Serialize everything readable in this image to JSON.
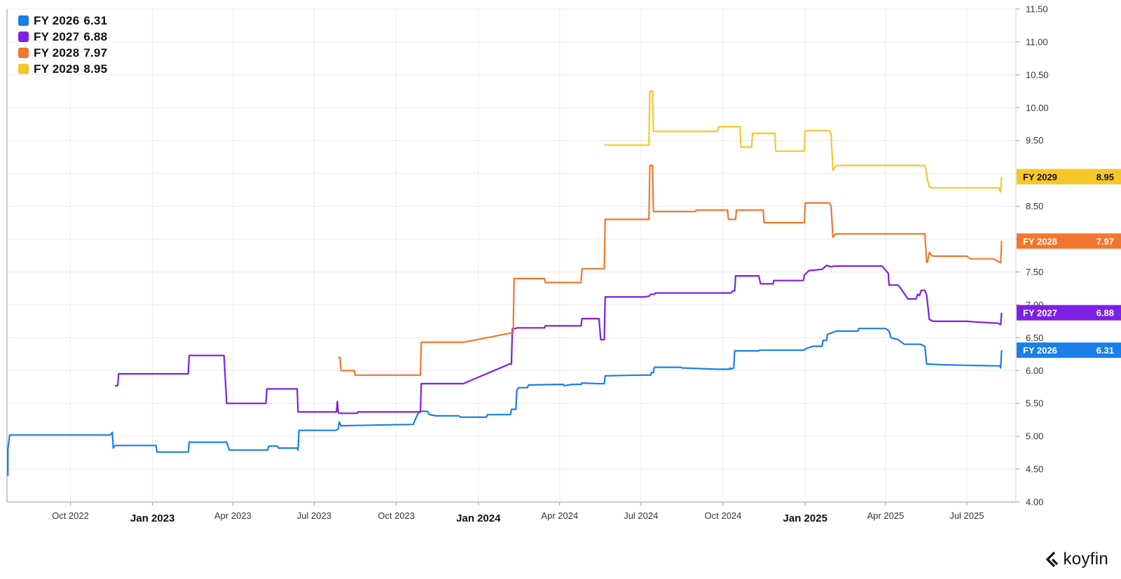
{
  "chart_data": {
    "type": "line",
    "y_axis": {
      "position": "right",
      "range": [
        4.0,
        11.5
      ],
      "ticks": [
        "4.00",
        "4.50",
        "5.00",
        "5.50",
        "6.00",
        "6.50",
        "7.00",
        "7.50",
        "8.00",
        "8.50",
        "9.00",
        "9.50",
        "10.00",
        "10.50",
        "11.00",
        "11.50"
      ]
    },
    "x_axis": {
      "range": [
        "2022-07-22",
        "2025-08-25"
      ],
      "ticks": [
        {
          "date": "2022-10-01",
          "label": "Oct 2022",
          "major": false
        },
        {
          "date": "2023-01-01",
          "label": "Jan 2023",
          "major": true
        },
        {
          "date": "2023-04-01",
          "label": "Apr 2023",
          "major": false
        },
        {
          "date": "2023-07-01",
          "label": "Jul 2023",
          "major": false
        },
        {
          "date": "2023-10-01",
          "label": "Oct 2023",
          "major": false
        },
        {
          "date": "2024-01-01",
          "label": "Jan 2024",
          "major": true
        },
        {
          "date": "2024-04-01",
          "label": "Apr 2024",
          "major": false
        },
        {
          "date": "2024-07-01",
          "label": "Jul 2024",
          "major": false
        },
        {
          "date": "2024-10-01",
          "label": "Oct 2024",
          "major": false
        },
        {
          "date": "2025-01-01",
          "label": "Jan 2025",
          "major": true
        },
        {
          "date": "2025-04-01",
          "label": "Apr 2025",
          "major": false
        },
        {
          "date": "2025-07-01",
          "label": "Jul 2025",
          "major": false
        }
      ]
    },
    "grid": true,
    "legend_placement": "top-left",
    "series": [
      {
        "name": "FY 2026",
        "last_value": "6.31",
        "color": "#1a7fe8",
        "points": [
          [
            "2022-07-23",
            4.4
          ],
          [
            "2022-07-23",
            4.8
          ],
          [
            "2022-07-25",
            5.02
          ],
          [
            "2022-11-15",
            5.02
          ],
          [
            "2022-11-17",
            5.06
          ],
          [
            "2022-11-18",
            4.82
          ],
          [
            "2022-11-20",
            4.86
          ],
          [
            "2023-01-05",
            4.86
          ],
          [
            "2023-01-06",
            4.76
          ],
          [
            "2023-02-10",
            4.76
          ],
          [
            "2023-02-11",
            4.91
          ],
          [
            "2023-03-25",
            4.91
          ],
          [
            "2023-03-28",
            4.79
          ],
          [
            "2023-05-10",
            4.79
          ],
          [
            "2023-05-11",
            4.85
          ],
          [
            "2023-05-21",
            4.85
          ],
          [
            "2023-05-22",
            4.82
          ],
          [
            "2023-06-12",
            4.82
          ],
          [
            "2023-06-13",
            4.79
          ],
          [
            "2023-06-14",
            5.09
          ],
          [
            "2023-07-25",
            5.09
          ],
          [
            "2023-07-28",
            5.11
          ],
          [
            "2023-07-29",
            5.22
          ],
          [
            "2023-07-31",
            5.16
          ],
          [
            "2023-10-20",
            5.18
          ],
          [
            "2023-10-25",
            5.34
          ],
          [
            "2023-10-28",
            5.38
          ],
          [
            "2023-11-05",
            5.38
          ],
          [
            "2023-11-07",
            5.33
          ],
          [
            "2023-11-15",
            5.31
          ],
          [
            "2023-12-10",
            5.31
          ],
          [
            "2023-12-12",
            5.29
          ],
          [
            "2024-01-10",
            5.29
          ],
          [
            "2024-01-11",
            5.33
          ],
          [
            "2024-02-06",
            5.33
          ],
          [
            "2024-02-07",
            5.41
          ],
          [
            "2024-02-12",
            5.41
          ],
          [
            "2024-02-13",
            5.7
          ],
          [
            "2024-02-15",
            5.74
          ],
          [
            "2024-02-25",
            5.74
          ],
          [
            "2024-02-26",
            5.78
          ],
          [
            "2024-04-05",
            5.79
          ],
          [
            "2024-04-06",
            5.77
          ],
          [
            "2024-04-15",
            5.79
          ],
          [
            "2024-04-25",
            5.79
          ],
          [
            "2024-04-26",
            5.81
          ],
          [
            "2024-05-15",
            5.8
          ],
          [
            "2024-05-21",
            5.8
          ],
          [
            "2024-05-22",
            5.92
          ],
          [
            "2024-06-30",
            5.93
          ],
          [
            "2024-07-12",
            5.93
          ],
          [
            "2024-07-13",
            5.97
          ],
          [
            "2024-07-15",
            5.97
          ],
          [
            "2024-07-16",
            6.05
          ],
          [
            "2024-08-15",
            6.05
          ],
          [
            "2024-08-16",
            6.04
          ],
          [
            "2024-09-25",
            6.02
          ],
          [
            "2024-10-08",
            6.02
          ],
          [
            "2024-10-09",
            6.04
          ],
          [
            "2024-10-10",
            6.02
          ],
          [
            "2024-10-13",
            6.04
          ],
          [
            "2024-10-14",
            6.3
          ],
          [
            "2024-11-10",
            6.3
          ],
          [
            "2024-11-11",
            6.31
          ],
          [
            "2024-12-31",
            6.31
          ],
          [
            "2025-01-01",
            6.33
          ],
          [
            "2025-01-10",
            6.37
          ],
          [
            "2025-01-20",
            6.37
          ],
          [
            "2025-01-21",
            6.46
          ],
          [
            "2025-01-25",
            6.46
          ],
          [
            "2025-01-26",
            6.55
          ],
          [
            "2025-02-05",
            6.6
          ],
          [
            "2025-03-01",
            6.6
          ],
          [
            "2025-03-02",
            6.64
          ],
          [
            "2025-04-01",
            6.64
          ],
          [
            "2025-04-05",
            6.6
          ],
          [
            "2025-04-07",
            6.5
          ],
          [
            "2025-04-15",
            6.47
          ],
          [
            "2025-04-22",
            6.4
          ],
          [
            "2025-05-10",
            6.4
          ],
          [
            "2025-05-15",
            6.37
          ],
          [
            "2025-05-17",
            6.1
          ],
          [
            "2025-06-01",
            6.09
          ],
          [
            "2025-07-01",
            6.08
          ],
          [
            "2025-08-07",
            6.07
          ],
          [
            "2025-08-08",
            6.04
          ],
          [
            "2025-08-09",
            6.31
          ]
        ]
      },
      {
        "name": "FY 2027",
        "last_value": "6.88",
        "color": "#7e1fe6",
        "points": [
          [
            "2022-11-20",
            5.77
          ],
          [
            "2022-11-23",
            5.77
          ],
          [
            "2022-11-24",
            5.95
          ],
          [
            "2023-02-10",
            5.95
          ],
          [
            "2023-02-11",
            6.23
          ],
          [
            "2023-03-22",
            6.23
          ],
          [
            "2023-03-25",
            5.5
          ],
          [
            "2023-05-08",
            5.5
          ],
          [
            "2023-05-09",
            5.72
          ],
          [
            "2023-06-12",
            5.72
          ],
          [
            "2023-06-13",
            5.37
          ],
          [
            "2023-07-26",
            5.37
          ],
          [
            "2023-07-27",
            5.53
          ],
          [
            "2023-07-28",
            5.36
          ],
          [
            "2023-07-29",
            5.35
          ],
          [
            "2023-08-18",
            5.35
          ],
          [
            "2023-08-19",
            5.37
          ],
          [
            "2023-10-28",
            5.37
          ],
          [
            "2023-10-29",
            5.8
          ],
          [
            "2023-12-15",
            5.8
          ],
          [
            "2024-02-05",
            6.1
          ],
          [
            "2024-02-07",
            6.1
          ],
          [
            "2024-02-08",
            6.64
          ],
          [
            "2024-02-12",
            6.64
          ],
          [
            "2024-02-13",
            6.65
          ],
          [
            "2024-03-15",
            6.65
          ],
          [
            "2024-03-16",
            6.68
          ],
          [
            "2024-04-25",
            6.68
          ],
          [
            "2024-04-26",
            6.79
          ],
          [
            "2024-05-15",
            6.79
          ],
          [
            "2024-05-17",
            6.47
          ],
          [
            "2024-05-21",
            6.47
          ],
          [
            "2024-05-22",
            7.12
          ],
          [
            "2024-07-05",
            7.12
          ],
          [
            "2024-07-10",
            7.13
          ],
          [
            "2024-07-12",
            7.16
          ],
          [
            "2024-07-16",
            7.16
          ],
          [
            "2024-07-17",
            7.18
          ],
          [
            "2024-10-10",
            7.18
          ],
          [
            "2024-10-12",
            7.21
          ],
          [
            "2024-10-14",
            7.21
          ],
          [
            "2024-10-15",
            7.44
          ],
          [
            "2024-11-10",
            7.44
          ],
          [
            "2024-11-12",
            7.32
          ],
          [
            "2024-11-26",
            7.32
          ],
          [
            "2024-11-27",
            7.37
          ],
          [
            "2024-12-30",
            7.37
          ],
          [
            "2024-12-31",
            7.45
          ],
          [
            "2025-01-05",
            7.52
          ],
          [
            "2025-01-20",
            7.54
          ],
          [
            "2025-01-25",
            7.6
          ],
          [
            "2025-01-30",
            7.58
          ],
          [
            "2025-02-03",
            7.59
          ],
          [
            "2025-03-28",
            7.59
          ],
          [
            "2025-04-01",
            7.53
          ],
          [
            "2025-04-04",
            7.48
          ],
          [
            "2025-04-05",
            7.3
          ],
          [
            "2025-04-15",
            7.3
          ],
          [
            "2025-04-18",
            7.25
          ],
          [
            "2025-04-23",
            7.15
          ],
          [
            "2025-04-26",
            7.09
          ],
          [
            "2025-05-05",
            7.09
          ],
          [
            "2025-05-07",
            7.16
          ],
          [
            "2025-05-09",
            7.14
          ],
          [
            "2025-05-11",
            7.22
          ],
          [
            "2025-05-15",
            7.22
          ],
          [
            "2025-05-17",
            7.15
          ],
          [
            "2025-05-20",
            6.78
          ],
          [
            "2025-05-24",
            6.75
          ],
          [
            "2025-07-01",
            6.75
          ],
          [
            "2025-07-10",
            6.74
          ],
          [
            "2025-08-05",
            6.72
          ],
          [
            "2025-08-08",
            6.7
          ],
          [
            "2025-08-09",
            6.88
          ]
        ]
      },
      {
        "name": "FY 2028",
        "last_value": "7.97",
        "color": "#f2772e",
        "points": [
          [
            "2023-07-28",
            6.2
          ],
          [
            "2023-07-30",
            6.2
          ],
          [
            "2023-07-31",
            6.0
          ],
          [
            "2023-08-15",
            6.0
          ],
          [
            "2023-08-16",
            5.93
          ],
          [
            "2023-10-28",
            5.93
          ],
          [
            "2023-10-29",
            6.43
          ],
          [
            "2023-12-15",
            6.43
          ],
          [
            "2024-02-06",
            6.57
          ],
          [
            "2024-02-09",
            6.57
          ],
          [
            "2024-02-10",
            7.4
          ],
          [
            "2024-03-15",
            7.4
          ],
          [
            "2024-03-16",
            7.34
          ],
          [
            "2024-04-25",
            7.34
          ],
          [
            "2024-04-26",
            7.55
          ],
          [
            "2024-05-21",
            7.55
          ],
          [
            "2024-05-22",
            8.3
          ],
          [
            "2024-07-10",
            8.3
          ],
          [
            "2024-07-11",
            9.12
          ],
          [
            "2024-07-14",
            9.12
          ],
          [
            "2024-07-15",
            8.42
          ],
          [
            "2024-08-31",
            8.42
          ],
          [
            "2024-09-01",
            8.44
          ],
          [
            "2024-10-06",
            8.44
          ],
          [
            "2024-10-07",
            8.3
          ],
          [
            "2024-10-15",
            8.3
          ],
          [
            "2024-10-16",
            8.44
          ],
          [
            "2024-11-15",
            8.44
          ],
          [
            "2024-11-16",
            8.25
          ],
          [
            "2024-12-31",
            8.25
          ],
          [
            "2025-01-01",
            8.55
          ],
          [
            "2025-01-28",
            8.55
          ],
          [
            "2025-01-30",
            8.5
          ],
          [
            "2025-02-01",
            8.03
          ],
          [
            "2025-02-02",
            8.04
          ],
          [
            "2025-02-04",
            8.08
          ],
          [
            "2025-05-10",
            8.08
          ],
          [
            "2025-05-15",
            8.08
          ],
          [
            "2025-05-17",
            7.65
          ],
          [
            "2025-05-18",
            7.65
          ],
          [
            "2025-05-20",
            7.8
          ],
          [
            "2025-05-22",
            7.76
          ],
          [
            "2025-05-24",
            7.74
          ],
          [
            "2025-07-01",
            7.74
          ],
          [
            "2025-07-05",
            7.7
          ],
          [
            "2025-07-31",
            7.7
          ],
          [
            "2025-08-05",
            7.66
          ],
          [
            "2025-08-08",
            7.64
          ],
          [
            "2025-08-09",
            7.97
          ]
        ]
      },
      {
        "name": "FY 2029",
        "last_value": "8.95",
        "color": "#f7c72a",
        "points": [
          [
            "2024-05-21",
            9.43
          ],
          [
            "2024-07-10",
            9.43
          ],
          [
            "2024-07-11",
            10.25
          ],
          [
            "2024-07-14",
            10.25
          ],
          [
            "2024-07-15",
            9.64
          ],
          [
            "2024-09-25",
            9.64
          ],
          [
            "2024-09-26",
            9.71
          ],
          [
            "2024-10-20",
            9.71
          ],
          [
            "2024-10-21",
            9.4
          ],
          [
            "2024-11-02",
            9.4
          ],
          [
            "2024-11-03",
            9.61
          ],
          [
            "2024-11-28",
            9.61
          ],
          [
            "2024-11-29",
            9.34
          ],
          [
            "2024-12-31",
            9.34
          ],
          [
            "2025-01-01",
            9.65
          ],
          [
            "2025-01-28",
            9.65
          ],
          [
            "2025-01-30",
            9.6
          ],
          [
            "2025-02-01",
            9.05
          ],
          [
            "2025-02-02",
            9.06
          ],
          [
            "2025-02-04",
            9.12
          ],
          [
            "2025-05-15",
            9.12
          ],
          [
            "2025-05-17",
            9.0
          ],
          [
            "2025-05-18",
            8.9
          ],
          [
            "2025-05-20",
            8.8
          ],
          [
            "2025-05-22",
            8.78
          ],
          [
            "2025-08-06",
            8.78
          ],
          [
            "2025-08-07",
            8.74
          ],
          [
            "2025-08-08",
            8.72
          ],
          [
            "2025-08-09",
            8.95
          ]
        ]
      }
    ]
  },
  "brand": {
    "name": "koyfin"
  }
}
